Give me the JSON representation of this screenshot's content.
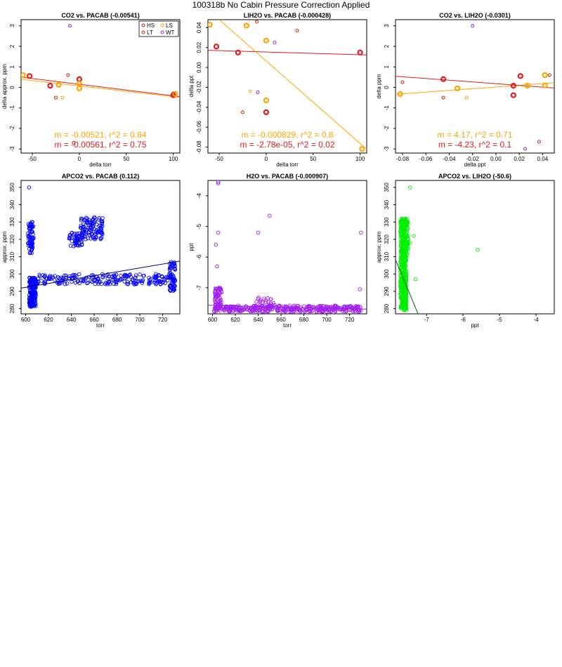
{
  "page_title": "100318b   No Cabin Pressure Correction Applied",
  "colors": {
    "HS": "#e41a1c",
    "LS": "#ffa500",
    "LT": "#cc2200",
    "WT": "#a020f0"
  },
  "chart_data": [
    {
      "type": "scatter",
      "title": "CO2 vs. PACAB (-0.00541)",
      "xlabel": "delta torr",
      "ylabel": "delta approx. ppm",
      "xlim": [
        -62,
        107
      ],
      "ylim": [
        -3.2,
        3.3
      ],
      "xticks": [
        "-50",
        "0",
        "50",
        "100"
      ],
      "xtick_values": [
        -50,
        0,
        50,
        100
      ],
      "yticks": [
        "-3",
        "-2",
        "-1",
        "0",
        "1",
        "2",
        "3"
      ],
      "ytick_values": [
        -3,
        -2,
        -1,
        0,
        1,
        2,
        3
      ],
      "legend": {
        "position": "top-right",
        "entries": [
          "HS",
          "LS",
          "LT",
          "WT"
        ]
      },
      "series": [
        {
          "name": "HS",
          "color": "#e41a1c",
          "size": "large",
          "points": [
            [
              -53,
              0.55
            ],
            [
              -31,
              0.08
            ],
            [
              0,
              0.4
            ],
            [
              100,
              -0.38
            ]
          ]
        },
        {
          "name": "LS",
          "color": "#ffa500",
          "size": "large",
          "points": [
            [
              -60,
              0.6
            ],
            [
              -22,
              0.12
            ],
            [
              0,
              0.18
            ],
            [
              0,
              -0.05
            ],
            [
              102,
              -0.32
            ]
          ]
        },
        {
          "name": "LT",
          "color": "#cc2200",
          "size": "small",
          "points": [
            [
              -25,
              -0.5
            ],
            [
              -12,
              0.6
            ],
            [
              100,
              -0.3
            ],
            [
              -6,
              -2.7
            ]
          ]
        },
        {
          "name": "WT",
          "color": "#a020f0",
          "size": "small",
          "points": [
            [
              -10,
              3.0
            ]
          ]
        },
        {
          "name": "",
          "color": "#ffa500",
          "size": "small",
          "points": [
            [
              -18,
              -0.5
            ]
          ]
        }
      ],
      "fits": [
        {
          "color": "#ffa500",
          "slope": -0.00521,
          "intercept": 0.07
        },
        {
          "color": "#e41a1c",
          "slope": -0.00561,
          "intercept": 0.15
        }
      ],
      "annotations": [
        {
          "text": "m = -0.00521, r^2 = 0.84",
          "color": "#ffa500"
        },
        {
          "text": "m = -0.00561, r^2 = 0.75",
          "color": "#e41a1c"
        }
      ]
    },
    {
      "type": "scatter",
      "title": "LIH2O vs. PACAB (-0.000428)",
      "xlabel": "delta torr",
      "ylabel": "delta ppt",
      "xlim": [
        -62,
        107
      ],
      "ylim": [
        -0.086,
        0.048
      ],
      "xticks": [
        "-50",
        "0",
        "50",
        "100"
      ],
      "xtick_values": [
        -50,
        0,
        50,
        100
      ],
      "yticks": [
        "-0.08",
        "-0.06",
        "-0.04",
        "-0.02",
        "0.00",
        "0.02",
        "0.04"
      ],
      "ytick_values": [
        -0.08,
        -0.06,
        -0.04,
        -0.02,
        0.0,
        0.02,
        0.04
      ],
      "series": [
        {
          "name": "HS",
          "color": "#e41a1c",
          "size": "large",
          "points": [
            [
              -53,
              0.021
            ],
            [
              -30,
              0.015
            ],
            [
              0,
              -0.045
            ],
            [
              100,
              0.015
            ]
          ]
        },
        {
          "name": "LS",
          "color": "#ffa500",
          "size": "large",
          "points": [
            [
              -60,
              0.043
            ],
            [
              -21,
              0.042
            ],
            [
              0,
              0.027
            ],
            [
              0,
              -0.033
            ],
            [
              102,
              -0.082
            ]
          ]
        },
        {
          "name": "LT",
          "color": "#cc2200",
          "size": "small",
          "points": [
            [
              -25,
              -0.045
            ],
            [
              -10,
              0.046
            ],
            [
              33,
              0.037
            ]
          ]
        },
        {
          "name": "WT",
          "color": "#a020f0",
          "size": "small",
          "points": [
            [
              -9,
              -0.025
            ],
            [
              9,
              0.025
            ]
          ]
        },
        {
          "name": "",
          "color": "#ffa500",
          "size": "small",
          "points": [
            [
              -17,
              -0.024
            ]
          ]
        }
      ],
      "fits": [
        {
          "color": "#e41a1c",
          "slope": -2.78e-05,
          "intercept": 0.0155
        },
        {
          "color": "#ffa500",
          "slope": -0.000829,
          "intercept": 0.0065
        }
      ],
      "annotations": [
        {
          "text": "m = -0.000829, r^2 = 0.8",
          "color": "#ffa500"
        },
        {
          "text": "m = -2.78e-05, r^2 = 0.02",
          "color": "#e41a1c"
        }
      ]
    },
    {
      "type": "scatter",
      "title": "CO2 vs. LIH2O (-0.0301)",
      "xlabel": "delta ppt",
      "ylabel": "delta ppm",
      "xlim": [
        -0.086,
        0.05
      ],
      "ylim": [
        -3.2,
        3.3
      ],
      "xticks": [
        "-0.08",
        "-0.06",
        "-0.04",
        "-0.02",
        "0.00",
        "0.02",
        "0.04"
      ],
      "xtick_values": [
        -0.08,
        -0.06,
        -0.04,
        -0.02,
        0.0,
        0.02,
        0.04
      ],
      "yticks": [
        "-3",
        "-2",
        "-1",
        "0",
        "1",
        "2",
        "3"
      ],
      "ytick_values": [
        -3,
        -2,
        -1,
        0,
        1,
        2,
        3
      ],
      "series": [
        {
          "name": "HS",
          "color": "#e41a1c",
          "size": "large",
          "points": [
            [
              -0.045,
              0.4
            ],
            [
              0.015,
              0.08
            ],
            [
              0.021,
              0.55
            ],
            [
              0.015,
              -0.38
            ]
          ]
        },
        {
          "name": "LS",
          "color": "#ffa500",
          "size": "large",
          "points": [
            [
              -0.082,
              -0.32
            ],
            [
              -0.033,
              -0.05
            ],
            [
              0.027,
              0.08
            ],
            [
              0.042,
              0.6
            ],
            [
              0.042,
              0.1
            ]
          ]
        },
        {
          "name": "LT",
          "color": "#cc2200",
          "size": "small",
          "points": [
            [
              -0.045,
              -0.5
            ],
            [
              -0.08,
              0.25
            ],
            [
              0.037,
              -2.65
            ],
            [
              0.046,
              0.6
            ]
          ]
        },
        {
          "name": "WT",
          "color": "#a020f0",
          "size": "small",
          "points": [
            [
              -0.02,
              3.0
            ],
            [
              0.025,
              -3.0
            ]
          ]
        },
        {
          "name": "",
          "color": "#ffa500",
          "size": "small",
          "points": [
            [
              -0.025,
              -0.5
            ]
          ]
        }
      ],
      "fits": [
        {
          "color": "#ffa500",
          "slope": 4.17,
          "intercept": 0.02
        },
        {
          "color": "#e41a1c",
          "slope": -4.23,
          "intercept": 0.18
        }
      ],
      "annotations": [
        {
          "text": "m = 4.17, r^2 = 0.71",
          "color": "#ffa500"
        },
        {
          "text": "m = -4.23, r^2 = 0.1",
          "color": "#e41a1c"
        }
      ]
    },
    {
      "type": "scatter",
      "title": "APCO2 vs. PACAB (0.112)",
      "xlabel": "torr",
      "ylabel": "approx. ppm",
      "xlim": [
        596,
        735
      ],
      "ylim": [
        277,
        354
      ],
      "xticks": [
        "600",
        "620",
        "640",
        "660",
        "680",
        "700",
        "720"
      ],
      "xtick_values": [
        600,
        620,
        640,
        660,
        680,
        700,
        720
      ],
      "yticks": [
        "280",
        "290",
        "300",
        "310",
        "320",
        "330",
        "340",
        "350"
      ],
      "ytick_values": [
        280,
        290,
        300,
        310,
        320,
        330,
        340,
        350
      ],
      "color": "#0000ff",
      "fit": {
        "color": "#000080",
        "slope": 0.112,
        "intercept": 225.1
      },
      "point_clusters": [
        {
          "x_range": [
            602,
            607
          ],
          "y_range": [
            312,
            330
          ],
          "count": 70
        },
        {
          "x_range": [
            603,
            609
          ],
          "y_range": [
            281,
            298
          ],
          "count": 160
        },
        {
          "x_range": [
            608,
            727
          ],
          "y_range": [
            294,
            300
          ],
          "count": 220
        },
        {
          "x_range": [
            638,
            650
          ],
          "y_range": [
            316,
            324
          ],
          "count": 50
        },
        {
          "x_range": [
            648,
            668
          ],
          "y_range": [
            320,
            333
          ],
          "count": 110
        },
        {
          "x_range": [
            726,
            731
          ],
          "y_range": [
            290,
            307
          ],
          "count": 70
        }
      ],
      "outliers": [
        [
          603,
          350
        ],
        [
          642,
          316
        ]
      ]
    },
    {
      "type": "scatter",
      "title": "H2O vs. PACAB (-0.000907)",
      "xlabel": "torr",
      "ylabel": "ppt",
      "xlim": [
        596,
        735
      ],
      "ylim": [
        -7.85,
        -3.5
      ],
      "xticks": [
        "600",
        "620",
        "640",
        "660",
        "680",
        "700",
        "720"
      ],
      "xtick_values": [
        600,
        620,
        640,
        660,
        680,
        700,
        720
      ],
      "yticks": [
        "-7",
        "-6",
        "-5",
        "-4"
      ],
      "ytick_values": [
        -7,
        -6,
        -5,
        -4
      ],
      "color": "#a020f0",
      "fit": {
        "color": "#a020f0",
        "slope": -0.000907,
        "intercept": -7.03
      },
      "point_clusters": [
        {
          "x_range": [
            601,
            730
          ],
          "y_range": [
            -7.78,
            -7.58
          ],
          "count": 360
        },
        {
          "x_range": [
            602,
            608
          ],
          "y_range": [
            -7.7,
            -7.0
          ],
          "count": 70
        },
        {
          "x_range": [
            637,
            655
          ],
          "y_range": [
            -7.6,
            -7.3
          ],
          "count": 25
        }
      ],
      "outliers": [
        [
          605,
          -3.6
        ],
        [
          605,
          -3.55
        ],
        [
          605,
          -5.2
        ],
        [
          650,
          -4.65
        ],
        [
          640,
          -5.2
        ],
        [
          603,
          -5.6
        ],
        [
          604,
          -6.3
        ],
        [
          730,
          -5.2
        ],
        [
          729,
          -7.05
        ]
      ]
    },
    {
      "type": "scatter",
      "title": "APCO2 vs. LIH2O (-50.6)",
      "xlabel": "ppt",
      "ylabel": "approx. ppm",
      "xlim": [
        -7.85,
        -3.5
      ],
      "ylim": [
        277,
        354
      ],
      "xticks": [
        "-7",
        "-6",
        "-5",
        "-4"
      ],
      "xtick_values": [
        -7,
        -6,
        -5,
        -4
      ],
      "yticks": [
        "280",
        "290",
        "300",
        "310",
        "320",
        "330",
        "340",
        "350"
      ],
      "ytick_values": [
        280,
        290,
        300,
        310,
        320,
        330,
        340,
        350
      ],
      "color": "#00ee00",
      "fit": {
        "color": "#006400",
        "slope": -50.6,
        "intercept": -89
      },
      "point_clusters": [
        {
          "x_range": [
            -7.72,
            -7.55
          ],
          "y_range": [
            279,
            298
          ],
          "count": 200
        },
        {
          "x_range": [
            -7.72,
            -7.55
          ],
          "y_range": [
            298,
            310
          ],
          "count": 90
        },
        {
          "x_range": [
            -7.72,
            -7.5
          ],
          "y_range": [
            310,
            332
          ],
          "count": 200
        }
      ],
      "outliers": [
        [
          -7.45,
          350
        ],
        [
          -5.6,
          314
        ],
        [
          -7.3,
          297
        ],
        [
          -7.35,
          322
        ],
        [
          -7.45,
          318
        ]
      ]
    }
  ]
}
